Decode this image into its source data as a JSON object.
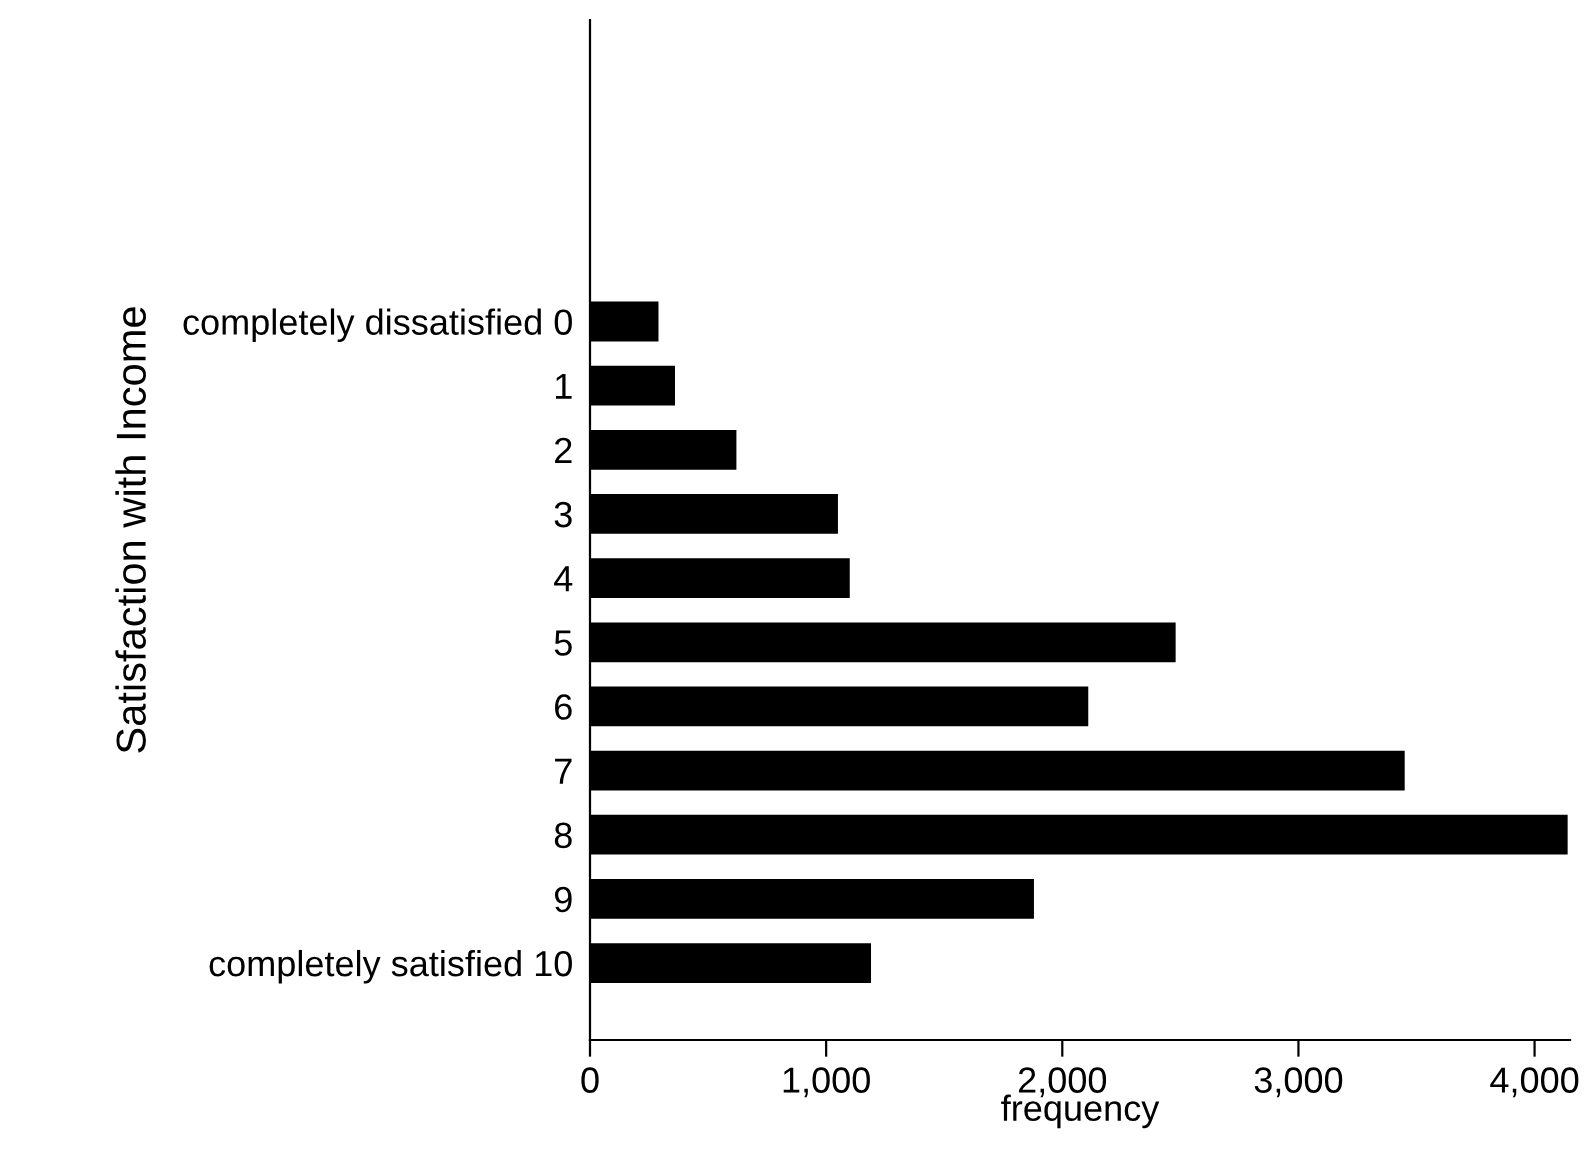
{
  "chart_data": {
    "type": "bar",
    "orientation": "horizontal",
    "xlabel": "frequency",
    "ylabel": "Satisfaction with Income",
    "categories": [
      "completely dissatisfied 0",
      "1",
      "2",
      "3",
      "4",
      "5",
      "6",
      "7",
      "8",
      "9",
      "completely satisfied 10"
    ],
    "values": [
      290,
      360,
      620,
      1050,
      1100,
      2480,
      2110,
      3450,
      4140,
      1880,
      1190
    ],
    "color": "#000000",
    "xlim": [
      0,
      4150
    ],
    "xticks": [
      0,
      {
        "value": 1000,
        "label": "1,000"
      },
      {
        "value": 2000,
        "label": "2,000"
      },
      {
        "value": 3000,
        "label": "3,000"
      },
      {
        "value": 4000,
        "label": "4,000"
      }
    ],
    "grid": false,
    "legend": false
  }
}
